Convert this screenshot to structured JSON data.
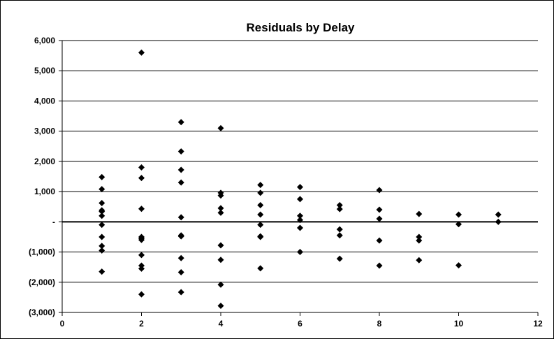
{
  "chart_data": {
    "type": "scatter",
    "title": "Residuals by Delay",
    "xlabel": "",
    "ylabel": "",
    "xlim": [
      0,
      12
    ],
    "ylim": [
      -3000,
      6000
    ],
    "x_ticks": [
      0,
      2,
      4,
      6,
      8,
      10,
      12
    ],
    "x_tick_labels": [
      "0",
      "2",
      "4",
      "6",
      "8",
      "10",
      "12"
    ],
    "y_ticks": [
      6000,
      5000,
      4000,
      3000,
      2000,
      1000,
      0,
      -1000,
      -2000,
      -3000
    ],
    "y_tick_labels": [
      "6,000",
      "5,000",
      "4,000",
      "3,000",
      "2,000",
      "1,000",
      "-",
      "(1,000)",
      "(2,000)",
      "(3,000)"
    ],
    "grid": "horizontal",
    "legend": "none",
    "marker": "diamond",
    "marker_color": "#000000",
    "series": [
      {
        "points": [
          [
            1,
            1480
          ],
          [
            1,
            1080
          ],
          [
            1,
            620
          ],
          [
            1,
            380
          ],
          [
            1,
            340
          ],
          [
            1,
            200
          ],
          [
            1,
            -100
          ],
          [
            1,
            -500
          ],
          [
            1,
            -800
          ],
          [
            1,
            -950
          ],
          [
            1,
            -1650
          ],
          [
            2,
            5600
          ],
          [
            2,
            1800
          ],
          [
            2,
            1450
          ],
          [
            2,
            430
          ],
          [
            2,
            -500
          ],
          [
            2,
            -550
          ],
          [
            2,
            -600
          ],
          [
            2,
            -1100
          ],
          [
            2,
            -1450
          ],
          [
            2,
            -1550
          ],
          [
            2,
            -2400
          ],
          [
            3,
            3300
          ],
          [
            3,
            2330
          ],
          [
            3,
            1720
          ],
          [
            3,
            1300
          ],
          [
            3,
            150
          ],
          [
            3,
            -450
          ],
          [
            3,
            -480
          ],
          [
            3,
            -1200
          ],
          [
            3,
            -1670
          ],
          [
            3,
            -2330
          ],
          [
            4,
            3100
          ],
          [
            4,
            960
          ],
          [
            4,
            870
          ],
          [
            4,
            450
          ],
          [
            4,
            300
          ],
          [
            4,
            -780
          ],
          [
            4,
            -1260
          ],
          [
            4,
            -2080
          ],
          [
            4,
            -2780
          ],
          [
            5,
            1220
          ],
          [
            5,
            960
          ],
          [
            5,
            550
          ],
          [
            5,
            240
          ],
          [
            5,
            -100
          ],
          [
            5,
            -480
          ],
          [
            5,
            -500
          ],
          [
            5,
            -1540
          ],
          [
            6,
            1150
          ],
          [
            6,
            750
          ],
          [
            6,
            200
          ],
          [
            6,
            60
          ],
          [
            6,
            -200
          ],
          [
            6,
            -1000
          ],
          [
            7,
            550
          ],
          [
            7,
            420
          ],
          [
            7,
            -250
          ],
          [
            7,
            -450
          ],
          [
            7,
            -1220
          ],
          [
            8,
            1050
          ],
          [
            8,
            400
          ],
          [
            8,
            100
          ],
          [
            8,
            -620
          ],
          [
            8,
            -1450
          ],
          [
            9,
            260
          ],
          [
            9,
            -500
          ],
          [
            9,
            -620
          ],
          [
            9,
            -1270
          ],
          [
            10,
            240
          ],
          [
            10,
            -80
          ],
          [
            10,
            -1440
          ],
          [
            11,
            240
          ],
          [
            11,
            0
          ]
        ]
      }
    ]
  }
}
